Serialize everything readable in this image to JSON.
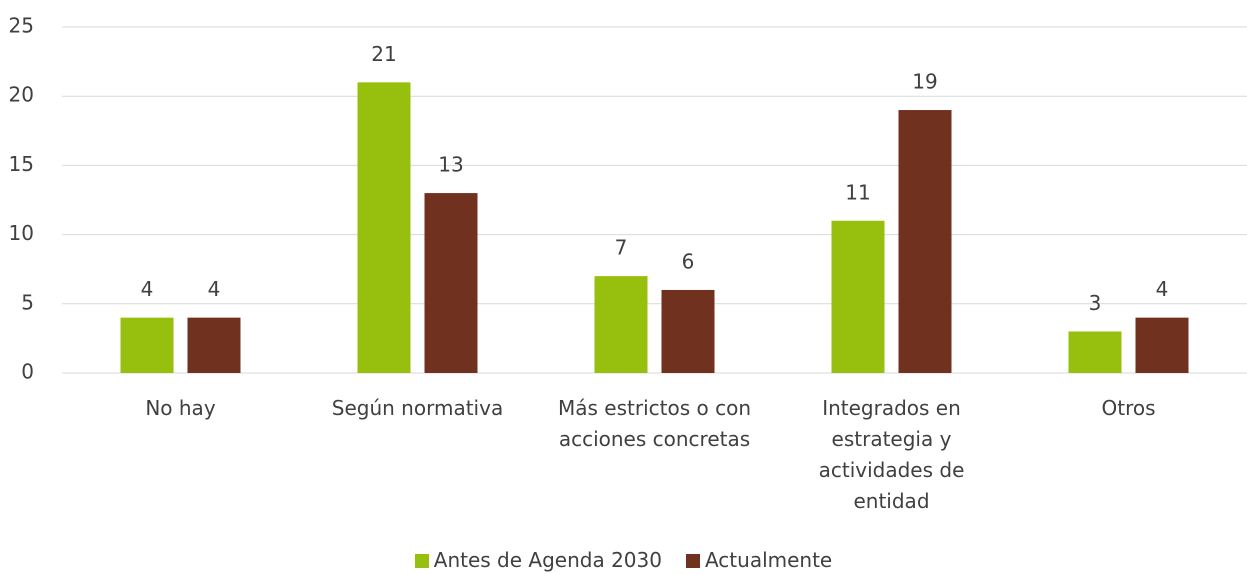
{
  "chart_data": {
    "type": "bar",
    "categories": [
      "No hay",
      "Según normativa",
      "Más estrictos o con acciones concretas",
      "Integrados en estrategia y actividades de entidad",
      "Otros"
    ],
    "series": [
      {
        "name": "Antes de Agenda 2030",
        "color": "#97c00e",
        "values": [
          4,
          21,
          7,
          11,
          3
        ]
      },
      {
        "name": "Actualmente",
        "color": "#70321e",
        "values": [
          4,
          13,
          6,
          19,
          4
        ]
      }
    ],
    "ylim": [
      0,
      25
    ],
    "yticks": [
      0,
      5,
      10,
      15,
      20,
      25
    ],
    "grid": true,
    "legend": "bottom"
  }
}
